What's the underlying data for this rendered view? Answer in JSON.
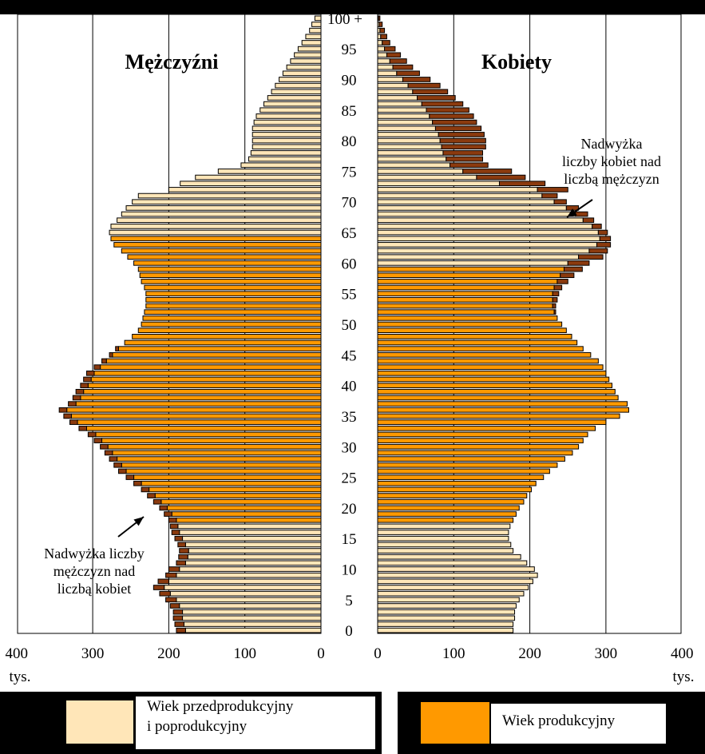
{
  "chart_data": {
    "type": "bar",
    "orientation": "horizontal-pyramid",
    "panels": {
      "left": {
        "title": "Mężczyźni"
      },
      "right": {
        "title": "Kobiety"
      }
    },
    "age_range": [
      0,
      100
    ],
    "ylim": [
      0,
      100
    ],
    "age_tick_labels": [
      "0",
      "5",
      "10",
      "15",
      "20",
      "25",
      "30",
      "35",
      "40",
      "45",
      "50",
      "55",
      "60",
      "65",
      "70",
      "75",
      "80",
      "85",
      "90",
      "95",
      "100 +"
    ],
    "x_tick_values": [
      400,
      300,
      200,
      100,
      0
    ],
    "x_tick_labels": [
      "400",
      "300",
      "200",
      "100",
      "0"
    ],
    "xlim": [
      0,
      400
    ],
    "unit_label": "tys.",
    "grid": true,
    "productive_age": {
      "men": [
        18,
        64
      ],
      "women": [
        18,
        59
      ]
    },
    "colors": {
      "non_productive": "#FFE6B8",
      "productive": "#FF9900",
      "surplus": "#8B3A0E",
      "stroke": "#000000"
    },
    "men": [
      178,
      180,
      182,
      182,
      186,
      190,
      198,
      206,
      200,
      190,
      186,
      178,
      175,
      174,
      178,
      182,
      186,
      188,
      190,
      196,
      202,
      210,
      218,
      226,
      236,
      246,
      256,
      262,
      268,
      274,
      280,
      288,
      296,
      308,
      320,
      328,
      334,
      322,
      316,
      312,
      306,
      302,
      298,
      290,
      282,
      274,
      266,
      258,
      248,
      240,
      236,
      234,
      232,
      230,
      230,
      230,
      232,
      236,
      238,
      240,
      246,
      254,
      262,
      272,
      276,
      278,
      276,
      268,
      262,
      256,
      248,
      240,
      200,
      185,
      165,
      135,
      105,
      95,
      92,
      90,
      90,
      90,
      90,
      88,
      85,
      80,
      75,
      70,
      65,
      60,
      55,
      50,
      45,
      40,
      35,
      30,
      25,
      20,
      15,
      12,
      8
    ],
    "women": [
      178,
      178,
      180,
      180,
      182,
      186,
      192,
      198,
      204,
      210,
      206,
      196,
      188,
      178,
      175,
      172,
      172,
      174,
      178,
      182,
      186,
      192,
      196,
      202,
      208,
      218,
      226,
      236,
      246,
      256,
      264,
      270,
      276,
      286,
      300,
      318,
      330,
      328,
      316,
      312,
      308,
      304,
      300,
      296,
      290,
      280,
      270,
      262,
      255,
      248,
      242,
      236,
      232,
      230,
      230,
      230,
      232,
      236,
      240,
      245,
      250,
      264,
      278,
      288,
      292,
      290,
      282,
      270,
      260,
      248,
      232,
      216,
      210,
      160,
      130,
      112,
      95,
      90,
      86,
      84,
      82,
      80,
      76,
      72,
      68,
      64,
      58,
      52,
      46,
      40,
      33,
      25,
      20,
      16,
      12,
      9,
      6,
      4,
      3,
      2,
      1
    ],
    "surplus_women": [
      0,
      0,
      0,
      0,
      0,
      0,
      0,
      0,
      0,
      0,
      0,
      0,
      0,
      0,
      0,
      0,
      0,
      0,
      0,
      0,
      0,
      0,
      0,
      0,
      0,
      0,
      0,
      0,
      0,
      0,
      0,
      0,
      0,
      0,
      0,
      0,
      0,
      0,
      0,
      0,
      0,
      0,
      0,
      0,
      0,
      0,
      0,
      0,
      0,
      0,
      0,
      0,
      2,
      4,
      6,
      8,
      10,
      14,
      18,
      24,
      28,
      32,
      24,
      18,
      14,
      12,
      12,
      14,
      16,
      16,
      16,
      20,
      40,
      60,
      64,
      64,
      50,
      48,
      52,
      58,
      60,
      60,
      60,
      58,
      58,
      56,
      54,
      50,
      46,
      42,
      36,
      30,
      26,
      22,
      18,
      14,
      10,
      8,
      6,
      4,
      2
    ],
    "surplus_men": [
      12,
      12,
      12,
      12,
      12,
      14,
      14,
      14,
      14,
      14,
      14,
      12,
      12,
      12,
      10,
      10,
      10,
      10,
      10,
      10,
      10,
      10,
      10,
      10,
      10,
      10,
      10,
      10,
      10,
      10,
      10,
      10,
      10,
      10,
      10,
      10,
      10,
      10,
      10,
      10,
      10,
      10,
      10,
      8,
      6,
      4,
      4,
      0,
      0,
      0,
      0,
      0,
      0,
      0,
      0,
      0,
      0,
      0,
      0,
      0,
      0,
      0,
      0,
      0,
      0,
      0,
      0,
      0,
      0,
      0,
      0,
      0,
      0,
      0,
      0,
      0,
      0,
      0,
      0,
      0,
      0,
      0,
      0,
      0,
      0,
      0,
      0,
      0,
      0,
      0,
      0,
      0,
      0,
      0,
      0,
      0,
      0,
      0,
      0,
      0,
      0
    ],
    "annotations": {
      "women_surplus": [
        "Nadwyżka",
        "liczby kobiet nad",
        "liczbą mężczyzn"
      ],
      "men_surplus": [
        "Nadwyżka liczby",
        "mężczyzn nad",
        "liczbą kobiet"
      ]
    },
    "legend": [
      {
        "label_lines": [
          "Wiek przedprodukcyjny",
          "i poprodukcyjny"
        ],
        "color": "#FFE6B8"
      },
      {
        "label_lines": [
          "Wiek produkcyjny"
        ],
        "color": "#FF9900"
      }
    ]
  }
}
